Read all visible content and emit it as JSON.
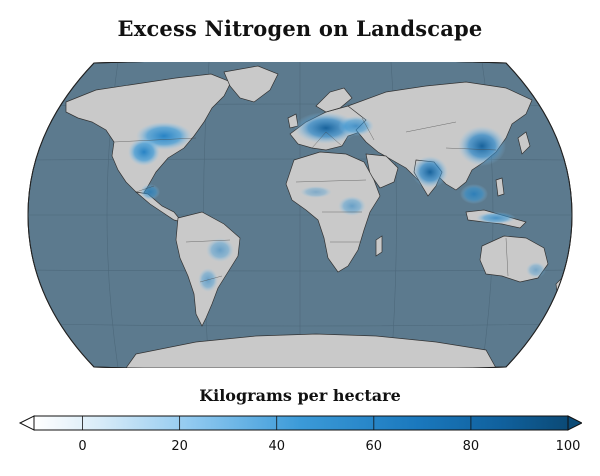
{
  "map": {
    "title": "Excess Nitrogen on Landscape",
    "projection": "robinson",
    "ocean_color": "#5c7a8e",
    "land_color": "#c9c9c9",
    "border_color": "#333333"
  },
  "legend": {
    "title": "Kilograms per hectare",
    "ticks": [
      "0",
      "20",
      "40",
      "60",
      "80",
      "100"
    ],
    "min": -10,
    "max": 100,
    "colors": [
      "#ffffff",
      "#b9dcf1",
      "#6fb6e4",
      "#2c8fcf",
      "#156ea8",
      "#0b4a76"
    ],
    "under_color": "#ffffff",
    "over_color": "#0b4a76"
  }
}
